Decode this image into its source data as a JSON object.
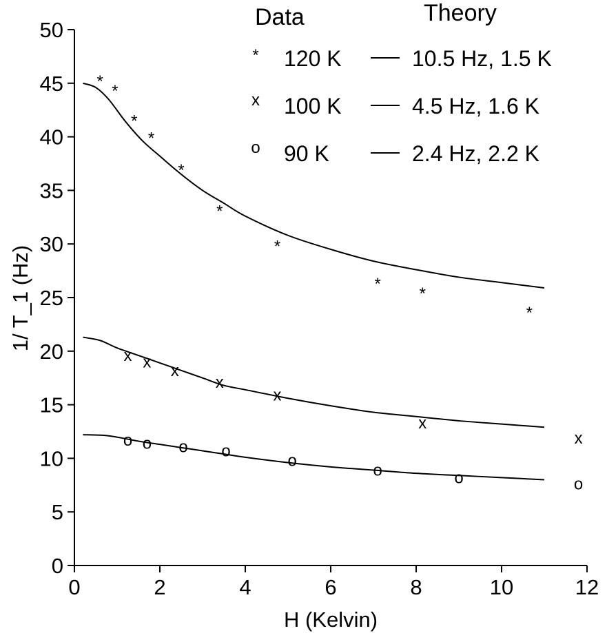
{
  "chart_data": {
    "type": "scatter",
    "xlabel": "H (Kelvin)",
    "ylabel": "1/ T_1 (Hz)",
    "xlim": [
      0,
      12
    ],
    "ylim": [
      0,
      50
    ],
    "xticks": [
      "0",
      "2",
      "4",
      "6",
      "8",
      "10",
      "12"
    ],
    "yticks": [
      "0",
      "5",
      "10",
      "15",
      "20",
      "25",
      "30",
      "35",
      "40",
      "45",
      "50"
    ],
    "grid": false,
    "legend": {
      "placement": "top-right",
      "data_header": "Data",
      "theory_header": "Theory"
    },
    "series": [
      {
        "name": "120 K",
        "marker": "*",
        "theory_label": "10.5 Hz, 1.5 K",
        "points": [
          [
            0.6,
            45.5
          ],
          [
            0.95,
            44.6
          ],
          [
            1.4,
            41.8
          ],
          [
            1.8,
            40.2
          ],
          [
            2.5,
            37.2
          ],
          [
            3.4,
            33.4
          ],
          [
            4.75,
            30.1
          ],
          [
            7.1,
            26.6
          ],
          [
            8.15,
            25.7
          ],
          [
            10.65,
            23.9
          ]
        ],
        "fit": [
          [
            0.2,
            45.0
          ],
          [
            0.5,
            44.6
          ],
          [
            0.8,
            43.5
          ],
          [
            1.2,
            41.4
          ],
          [
            1.6,
            39.6
          ],
          [
            2.0,
            38.2
          ],
          [
            2.5,
            36.5
          ],
          [
            3.0,
            35.0
          ],
          [
            3.5,
            33.8
          ],
          [
            4.0,
            32.6
          ],
          [
            5.0,
            30.8
          ],
          [
            6.0,
            29.5
          ],
          [
            7.0,
            28.4
          ],
          [
            8.0,
            27.6
          ],
          [
            9.0,
            26.9
          ],
          [
            10.0,
            26.4
          ],
          [
            11.0,
            25.9
          ]
        ]
      },
      {
        "name": "100 K",
        "marker": "x",
        "theory_label": "4.5 Hz, 1.6 K",
        "points": [
          [
            1.25,
            19.6
          ],
          [
            1.7,
            19.0
          ],
          [
            2.35,
            18.2
          ],
          [
            3.4,
            17.1
          ],
          [
            4.75,
            15.9
          ],
          [
            8.15,
            13.3
          ],
          [
            11.8,
            11.9
          ]
        ],
        "fit": [
          [
            0.2,
            21.3
          ],
          [
            0.6,
            21.0
          ],
          [
            1.0,
            20.3
          ],
          [
            1.5,
            19.6
          ],
          [
            2.0,
            18.9
          ],
          [
            2.5,
            18.2
          ],
          [
            3.0,
            17.5
          ],
          [
            3.5,
            16.8
          ],
          [
            4.0,
            16.4
          ],
          [
            5.0,
            15.6
          ],
          [
            6.0,
            14.9
          ],
          [
            7.0,
            14.3
          ],
          [
            8.0,
            13.9
          ],
          [
            9.0,
            13.5
          ],
          [
            10.0,
            13.2
          ],
          [
            11.0,
            12.9
          ]
        ]
      },
      {
        "name": "90 K",
        "marker": "o",
        "theory_label": "2.4 Hz, 2.2 K",
        "points": [
          [
            1.25,
            11.7
          ],
          [
            1.7,
            11.4
          ],
          [
            2.55,
            11.1
          ],
          [
            3.55,
            10.7
          ],
          [
            5.1,
            9.8
          ],
          [
            7.1,
            8.9
          ],
          [
            9.0,
            8.2
          ],
          [
            11.8,
            7.6
          ]
        ],
        "fit": [
          [
            0.2,
            12.2
          ],
          [
            0.8,
            12.1
          ],
          [
            1.5,
            11.6
          ],
          [
            2.0,
            11.3
          ],
          [
            2.5,
            11.0
          ],
          [
            3.0,
            10.7
          ],
          [
            3.5,
            10.4
          ],
          [
            4.0,
            10.1
          ],
          [
            5.0,
            9.6
          ],
          [
            6.0,
            9.2
          ],
          [
            7.0,
            8.9
          ],
          [
            8.0,
            8.6
          ],
          [
            9.0,
            8.4
          ],
          [
            10.0,
            8.2
          ],
          [
            11.0,
            8.0
          ]
        ]
      }
    ]
  }
}
